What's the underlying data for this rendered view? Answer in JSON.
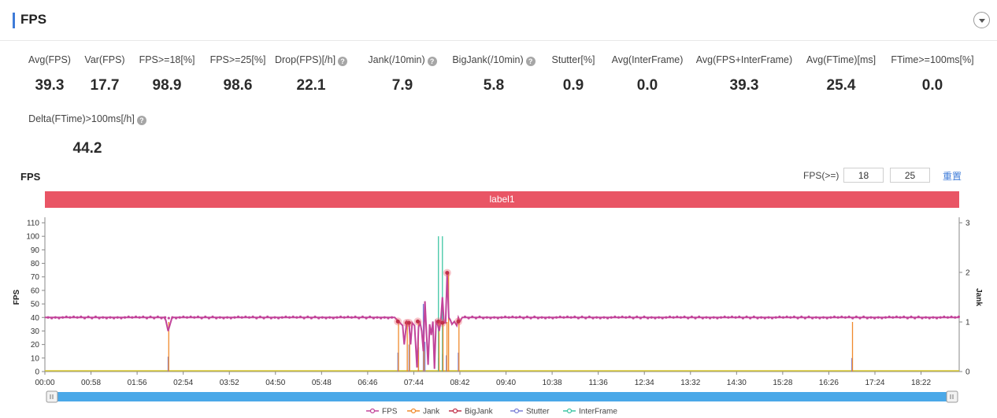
{
  "header": {
    "title": "FPS",
    "collapse_icon": "chevron-down-icon"
  },
  "metrics": [
    {
      "label": "Avg(FPS)",
      "value": "39.3",
      "help": false
    },
    {
      "label": "Var(FPS)",
      "value": "17.7",
      "help": false
    },
    {
      "label": "FPS>=18[%]",
      "value": "98.9",
      "help": false
    },
    {
      "label": "FPS>=25[%]",
      "value": "98.6",
      "help": false
    },
    {
      "label": "Drop(FPS)[/h]",
      "value": "22.1",
      "help": true
    },
    {
      "label": "Jank(/10min)",
      "value": "7.9",
      "help": true
    },
    {
      "label": "BigJank(/10min)",
      "value": "5.8",
      "help": true
    },
    {
      "label": "Stutter[%]",
      "value": "0.9",
      "help": false
    },
    {
      "label": "Avg(InterFrame)",
      "value": "0.0",
      "help": false
    },
    {
      "label": "Avg(FPS+InterFrame)",
      "value": "39.3",
      "help": false
    },
    {
      "label": "Avg(FTime)[ms]",
      "value": "25.4",
      "help": false
    },
    {
      "label": "FTime>=100ms[%]",
      "value": "0.0",
      "help": false
    },
    {
      "label": "Delta(FTime)>100ms[/h]",
      "value": "44.2",
      "help": true
    }
  ],
  "controls": {
    "fps_threshold_label": "FPS(>=)",
    "threshold_1": "18",
    "threshold_2": "25",
    "reset_label": "重置"
  },
  "chart_data": {
    "type": "line",
    "title": "FPS",
    "band_label": "label1",
    "xlabel": "",
    "ylabel": "FPS",
    "y2label": "Jank",
    "ylim": [
      0,
      110
    ],
    "y2lim": [
      0,
      3
    ],
    "yticks": [
      0,
      10,
      20,
      30,
      40,
      50,
      60,
      70,
      80,
      90,
      100,
      110
    ],
    "y2ticks": [
      0,
      1,
      2,
      3
    ],
    "x_range_s": [
      0,
      1150
    ],
    "xticks": [
      "00:00",
      "00:58",
      "01:56",
      "02:54",
      "03:52",
      "04:50",
      "05:48",
      "06:46",
      "07:44",
      "08:42",
      "09:40",
      "10:38",
      "11:36",
      "12:34",
      "13:32",
      "14:30",
      "15:28",
      "16:26",
      "17:24",
      "18:22"
    ],
    "legend": [
      "FPS",
      "Jank",
      "BigJank",
      "Stutter",
      "InterFrame"
    ],
    "legend_position": "bottom",
    "colors": {
      "FPS": "#c2449a",
      "Jank": "#f08a2c",
      "BigJank": "#c0304a",
      "Stutter": "#7b7fd6",
      "InterFrame": "#3fc6a4",
      "Baseline": "#d8c830",
      "Band": "#e95565",
      "Scroll": "#4aa8e8"
    },
    "series": [
      {
        "name": "FPS",
        "baseline": 40,
        "x": [
          0,
          150,
          152,
          155,
          158,
          160,
          440,
          445,
          450,
          452,
          455,
          458,
          460,
          462,
          465,
          468,
          470,
          472,
          474,
          476,
          478,
          480,
          482,
          484,
          486,
          488,
          490,
          492,
          494,
          496,
          498,
          500,
          502,
          504,
          506,
          508,
          510,
          512,
          515,
          518,
          520,
          522,
          525,
          1150
        ],
        "values": [
          40,
          40,
          38,
          30,
          36,
          40,
          40,
          37,
          34,
          20,
          37,
          35,
          20,
          36,
          34,
          3,
          33,
          36,
          30,
          15,
          52,
          28,
          5,
          35,
          27,
          37,
          2,
          37,
          35,
          30,
          38,
          55,
          36,
          36,
          72,
          40,
          38,
          35,
          37,
          34,
          40,
          37,
          40,
          40
        ]
      },
      {
        "name": "Jank",
        "x": [
          155,
          444,
          455,
          458,
          469,
          476,
          495,
          500,
          505,
          507,
          520,
          1015
        ],
        "values": [
          1,
          1,
          1,
          1,
          1,
          1,
          1,
          1,
          1,
          2,
          1,
          1
        ]
      },
      {
        "name": "BigJank",
        "x": [
          155,
          444,
          455,
          458,
          469,
          476,
          495,
          500,
          505,
          507,
          520,
          1015
        ],
        "values": [
          1,
          1,
          1,
          1,
          1,
          1,
          1,
          1,
          1,
          2,
          1,
          1
        ]
      },
      {
        "name": "Stutter",
        "x": [
          155,
          444,
          458,
          470,
          476,
          478,
          495,
          500,
          505,
          520,
          1015
        ],
        "values": [
          11,
          14,
          20,
          18,
          50,
          22,
          10,
          13,
          12,
          14,
          10
        ]
      },
      {
        "name": "InterFrame",
        "x": [
          495,
          500
        ],
        "values": [
          100,
          100
        ]
      }
    ],
    "jank_markers": [
      {
        "x": 444,
        "y": 37
      },
      {
        "x": 455,
        "y": 36
      },
      {
        "x": 458,
        "y": 36
      },
      {
        "x": 469,
        "y": 37
      },
      {
        "x": 495,
        "y": 37
      },
      {
        "x": 500,
        "y": 36
      },
      {
        "x": 506,
        "y": 73
      },
      {
        "x": 520,
        "y": 37
      }
    ]
  }
}
